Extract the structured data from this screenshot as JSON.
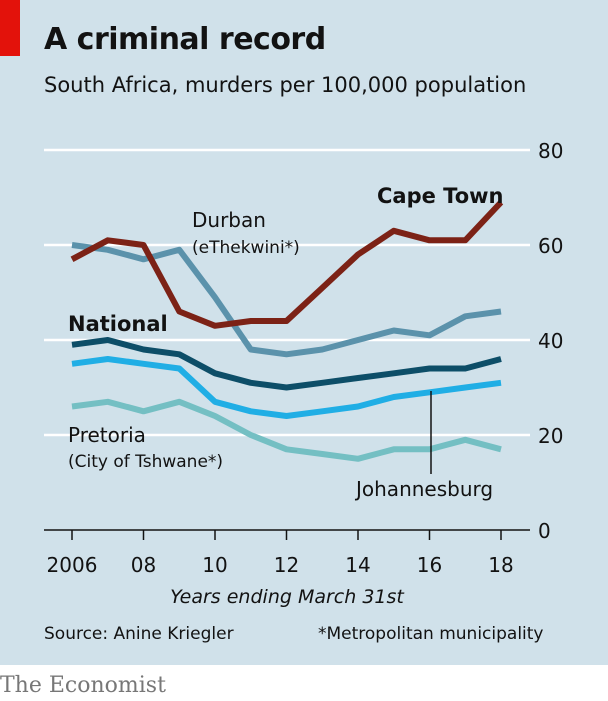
{
  "header": {
    "title": "A criminal record",
    "subtitle": "South Africa, murders per 100,000 population"
  },
  "footer": {
    "source": "Source: Anine Kriegler",
    "note": "*Metropolitan municipality"
  },
  "brand": "The Economist",
  "colors": {
    "panel": "#d0e1ea",
    "accent_red": "#e3120b",
    "cape_town": "#7c2216",
    "durban": "#5b92ab",
    "national": "#0d4e68",
    "johannesburg": "#20aee5",
    "pretoria": "#74bfc3"
  },
  "chart_data": {
    "type": "line",
    "x": [
      2006,
      2007,
      2008,
      2009,
      2010,
      2011,
      2012,
      2013,
      2014,
      2015,
      2016,
      2017,
      2018
    ],
    "xticks": [
      2006,
      2008,
      2010,
      2012,
      2014,
      2016,
      2018
    ],
    "xtick_labels": [
      "2006",
      "08",
      "10",
      "12",
      "14",
      "16",
      "18"
    ],
    "xlabel": "Years ending March 31st",
    "ylim": [
      0,
      80
    ],
    "yticks": [
      0,
      20,
      40,
      60,
      80
    ],
    "ytick_labels": [
      "0",
      "20",
      "40",
      "60",
      "80"
    ],
    "y_axis_side": "right",
    "grid": true,
    "series": [
      {
        "key": "cape_town",
        "name": "Cape Town",
        "sub": "",
        "color": "#7c2216",
        "values": [
          57,
          61,
          60,
          46,
          43,
          44,
          44,
          51,
          58,
          63,
          61,
          61,
          69
        ]
      },
      {
        "key": "durban",
        "name": "Durban",
        "sub": "(eThekwini*)",
        "color": "#5b92ab",
        "values": [
          60,
          59,
          57,
          59,
          49,
          38,
          37,
          38,
          40,
          42,
          41,
          45,
          46
        ]
      },
      {
        "key": "national",
        "name": "National",
        "sub": "",
        "color": "#0d4e68",
        "values": [
          39,
          40,
          38,
          37,
          33,
          31,
          30,
          31,
          32,
          33,
          34,
          34,
          36
        ]
      },
      {
        "key": "johannesburg",
        "name": "Johannesburg",
        "sub": "",
        "color": "#20aee5",
        "values": [
          35,
          36,
          35,
          34,
          27,
          25,
          24,
          25,
          26,
          28,
          29,
          30,
          31
        ]
      },
      {
        "key": "pretoria",
        "name": "Pretoria",
        "sub": "(City of Tshwane*)",
        "color": "#74bfc3",
        "values": [
          26,
          27,
          25,
          27,
          24,
          20,
          17,
          16,
          15,
          17,
          17,
          19,
          17
        ]
      }
    ]
  }
}
